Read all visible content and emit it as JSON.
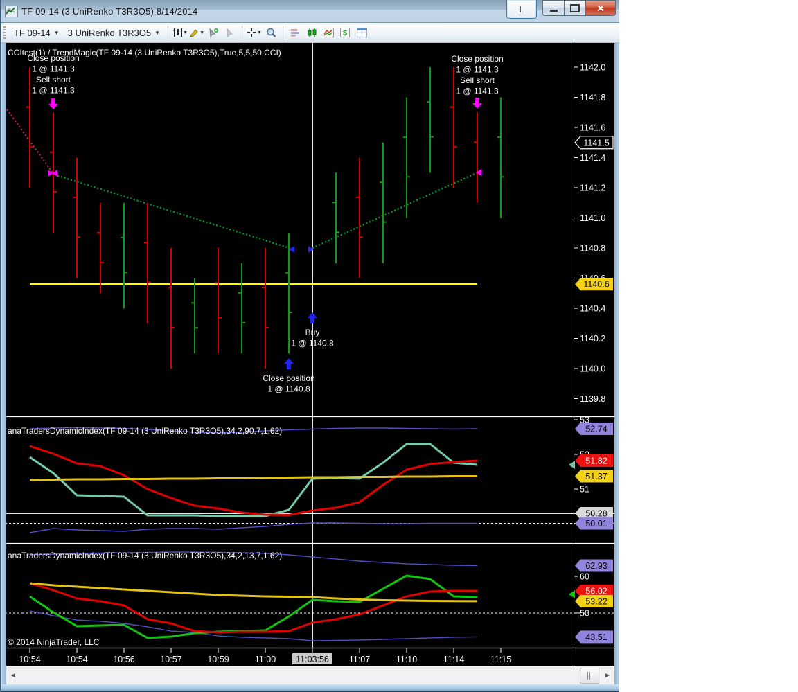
{
  "window": {
    "title": "TF 09-14 (3 UniRenko T3R3O5)  8/14/2014",
    "link_button": "L",
    "close_glyph": "✕"
  },
  "toolbar": {
    "instrument": "TF 09-14",
    "period": "3 UniRenko T3R3O5",
    "dropdown_arrow": "▼",
    "icons": [
      "chart-style",
      "drawing-tools",
      "add-indicator",
      "remove-indicator",
      "crosshair",
      "zoom",
      "market-depth",
      "chart-trader",
      "chart-window",
      "account-dollar",
      "data-grid"
    ]
  },
  "scrollbar": {
    "left_arrow": "◄",
    "right_arrow": "►"
  },
  "chart_data": {
    "type": "trading-chart",
    "layout": {
      "bar0_x": 42,
      "bar_step": 34,
      "axis_x": 827,
      "crosshair_x": 450,
      "lines_end_i": 19
    },
    "colors": {
      "bar_up": "#0f9b0f",
      "bar_down": "#d40000",
      "trend_up": "#00a23c",
      "trend_down": "#cf2050",
      "band": "#544cc0",
      "rsi_red": "#e00000",
      "signal_teal": "#76ccaa",
      "base_yellow": "#e3c21a",
      "signal_green": "#12c312",
      "hline_yellow": "#ffff00",
      "magenta": "#ff00ff",
      "blue": "#2323ee",
      "tag_purple": "#9184dc",
      "tag_red": "#ee1111",
      "tag_yellow": "#f2d117",
      "tag_gray": "#d9d9d9",
      "axis": "#ffffff"
    },
    "price_panel": {
      "label": "CCItest(1)  /  TrendMagic(TF  09-14  (3  UniRenko  T3R3O5),True,5,5,50,CCI)",
      "y_ticks": [
        1142.0,
        1141.8,
        1141.6,
        1141.4,
        1141.2,
        1141.0,
        1140.8,
        1140.6,
        1140.4,
        1140.2,
        1140.0,
        1139.8
      ],
      "bars": [
        {
          "i": 0,
          "h": 1142.0,
          "l": 1141.2,
          "d": "down"
        },
        {
          "i": 1,
          "h": 1141.7,
          "l": 1140.9,
          "d": "down"
        },
        {
          "i": 2,
          "h": 1141.4,
          "l": 1140.6,
          "d": "down"
        },
        {
          "i": 3,
          "h": 1141.1,
          "l": 1140.5,
          "d": "down"
        },
        {
          "i": 4,
          "h": 1141.1,
          "l": 1140.4,
          "d": "up"
        },
        {
          "i": 5,
          "h": 1141.1,
          "l": 1140.3,
          "d": "down"
        },
        {
          "i": 6,
          "h": 1140.8,
          "l": 1140.0,
          "d": "down"
        },
        {
          "i": 7,
          "h": 1140.6,
          "l": 1140.1,
          "d": "up"
        },
        {
          "i": 8,
          "h": 1140.8,
          "l": 1140.1,
          "d": "down"
        },
        {
          "i": 9,
          "h": 1140.7,
          "l": 1140.1,
          "d": "up"
        },
        {
          "i": 10,
          "h": 1140.8,
          "l": 1140.0,
          "d": "down"
        },
        {
          "i": 11,
          "h": 1140.9,
          "l": 1140.1,
          "d": "up"
        },
        {
          "i": 13,
          "h": 1141.3,
          "l": 1140.7,
          "d": "up"
        },
        {
          "i": 14,
          "h": 1141.4,
          "l": 1140.6,
          "d": "down"
        },
        {
          "i": 15,
          "h": 1141.5,
          "l": 1140.7,
          "d": "up"
        },
        {
          "i": 16,
          "h": 1141.8,
          "l": 1141.0,
          "d": "up"
        },
        {
          "i": 17,
          "h": 1142.0,
          "l": 1141.3,
          "d": "up"
        },
        {
          "i": 18,
          "h": 1142.0,
          "l": 1141.2,
          "d": "down"
        },
        {
          "i": 19,
          "h": 1141.7,
          "l": 1141.1,
          "d": "down"
        },
        {
          "i": 20,
          "h": 1141.8,
          "l": 1141.0,
          "d": "up"
        }
      ],
      "yellow_line": {
        "value": 1140.56,
        "x1": 42,
        "x2": 688
      },
      "trend_segments": [
        {
          "color": "trend_down",
          "x1": 9,
          "p1": 1141.72,
          "x2": 75,
          "p2": 1141.3
        },
        {
          "color": "trend_up",
          "x1": 82,
          "p1": 1141.28,
          "x2": 417,
          "p2": 1140.8
        },
        {
          "color": "trend_up",
          "x1": 450,
          "p1": 1140.8,
          "x2": 688,
          "p2": 1141.3
        }
      ],
      "tags": [
        {
          "value": 1141.5,
          "label": "1141.5",
          "style": "outline"
        },
        {
          "value": 1140.56,
          "label": "1140.6",
          "style": "yellow"
        }
      ],
      "markers": [
        {
          "type": "arrow-down",
          "x": 76,
          "y": 142,
          "color": "magenta"
        },
        {
          "type": "arrow-down",
          "x": 688,
          "y": 141,
          "color": "magenta"
        },
        {
          "type": "arrow-up",
          "x": 416,
          "y": 533,
          "color": "blue"
        },
        {
          "type": "arrow-up",
          "x": 450,
          "y": 467,
          "color": "blue"
        },
        {
          "type": "tri-right",
          "x": 68,
          "y": 250,
          "color": "magenta"
        },
        {
          "type": "tri-left",
          "x": 82,
          "y": 250,
          "color": "magenta"
        },
        {
          "type": "tri-left",
          "x": 694,
          "y": 249,
          "color": "magenta"
        },
        {
          "type": "tri-left",
          "x": 424,
          "y": 360,
          "color": "blue"
        },
        {
          "type": "tri-right",
          "x": 444,
          "y": 360,
          "color": "blue"
        }
      ],
      "annotations": [
        {
          "x": 76,
          "y": 88,
          "lines": [
            "Close position",
            "1 @ 1141.3",
            "Sell short",
            "1 @ 1141.3"
          ]
        },
        {
          "x": 688,
          "y": 89,
          "lines": [
            "Close position",
            "1 @ 1141.3",
            "Sell short",
            "1 @ 1141.3"
          ]
        },
        {
          "x": 450,
          "y": 484,
          "lines": [
            "Buy",
            "1 @ 1140.8"
          ]
        },
        {
          "x": 416,
          "y": 550,
          "lines": [
            "Close position",
            "1 @ 1140.8"
          ]
        }
      ]
    },
    "tdi_panels": [
      {
        "label": "anaTradersDynamicIndex(TF  09-14  (3  UniRenko  T3R3O5),34,2,90,7,1.62)",
        "label_y": 626,
        "y_ticks": [
          53,
          52,
          51
        ],
        "series": {
          "upper_band": [
            52.74,
            52.76,
            52.77,
            52.76,
            52.75,
            52.72,
            52.68,
            52.64,
            52.62,
            52.64,
            52.68,
            52.71,
            52.73,
            52.75,
            52.76,
            52.76,
            52.75,
            52.74,
            52.73,
            52.74
          ],
          "rsi": [
            52.24,
            52.02,
            51.74,
            51.66,
            51.4,
            51.0,
            50.74,
            50.52,
            50.44,
            50.32,
            50.26,
            50.25,
            50.38,
            50.46,
            50.62,
            51.12,
            51.56,
            51.72,
            51.78,
            51.82
          ],
          "signal": [
            51.92,
            51.46,
            50.82,
            50.8,
            50.78,
            50.24,
            50.24,
            50.24,
            50.22,
            50.22,
            50.22,
            50.4,
            51.3,
            51.32,
            51.3,
            51.76,
            52.3,
            52.3,
            51.76,
            51.7
          ],
          "base": [
            51.26,
            51.27,
            51.28,
            51.28,
            51.29,
            51.29,
            51.3,
            51.3,
            51.31,
            51.31,
            51.32,
            51.33,
            51.34,
            51.34,
            51.35,
            51.35,
            51.36,
            51.36,
            51.37,
            51.37
          ],
          "lower_band": [
            49.74,
            49.86,
            49.82,
            49.8,
            49.78,
            49.84,
            49.86,
            49.86,
            49.84,
            49.88,
            49.92,
            49.98,
            50.02,
            50.02,
            50.01,
            50.0,
            50.0,
            50.01,
            50.01,
            50.01
          ]
        },
        "signal_color": "signal_teal",
        "hline_solid": 50.3,
        "hline_dashed": 50.01,
        "tags": [
          {
            "value": 52.74,
            "label": "52.74",
            "style": "purple"
          },
          {
            "value": 51.7,
            "label": "",
            "style": "sliver-teal"
          },
          {
            "value": 51.82,
            "label": "51.82",
            "style": "red"
          },
          {
            "value": 51.37,
            "label": "51.37",
            "style": "yellow"
          },
          {
            "value": 50.3,
            "label": "50.28",
            "style": "gray"
          },
          {
            "value": 50.01,
            "label": "50.01",
            "style": "purple"
          }
        ]
      },
      {
        "label": "anaTradersDynamicIndex(TF  09-14  (3  UniRenko  T3R3O5),34,2,13,7,1.62)",
        "label_y": 806,
        "y_ticks": [
          60,
          50
        ],
        "series": {
          "upper_band": [
            65.85,
            66.04,
            66.23,
            66.32,
            66.42,
            66.51,
            66.6,
            66.6,
            66.51,
            66.42,
            66.23,
            65.85,
            65.28,
            64.72,
            64.15,
            63.77,
            63.4,
            63.21,
            63.02,
            62.93
          ],
          "rsi": [
            58.11,
            56.23,
            53.96,
            53.21,
            52.08,
            48.3,
            47.17,
            45.09,
            44.72,
            44.91,
            44.91,
            45.09,
            47.36,
            48.3,
            49.62,
            52.08,
            54.53,
            55.85,
            56.04,
            56.02
          ],
          "signal": [
            54.53,
            50.19,
            46.42,
            46.6,
            46.79,
            43.21,
            43.58,
            44.53,
            44.91,
            45.09,
            45.28,
            49.06,
            53.58,
            53.21,
            53.02,
            56.6,
            60.19,
            59.25,
            54.53,
            54.34
          ],
          "base": [
            58.11,
            57.55,
            57.17,
            56.79,
            56.42,
            56.04,
            55.66,
            55.28,
            54.91,
            54.72,
            54.53,
            54.43,
            54.34,
            53.96,
            53.68,
            53.49,
            53.4,
            53.3,
            53.25,
            53.22
          ],
          "lower_band": [
            50.57,
            49.25,
            48.11,
            47.74,
            47.17,
            46.23,
            45.09,
            44.72,
            43.77,
            43.4,
            43.21,
            43.02,
            42.45,
            42.55,
            42.64,
            42.83,
            43.02,
            43.21,
            43.4,
            43.51
          ]
        },
        "signal_color": "signal_green",
        "hline_solid": null,
        "hline_dashed": 50.0,
        "tags": [
          {
            "value": 62.93,
            "label": "62.93",
            "style": "purple"
          },
          {
            "value": 55.1,
            "label": "",
            "style": "sliver-green"
          },
          {
            "value": 56.02,
            "label": "56.02",
            "style": "red"
          },
          {
            "value": 53.22,
            "label": "53.22",
            "style": "yellow"
          },
          {
            "value": 43.51,
            "label": "43.51",
            "style": "purple"
          }
        ]
      }
    ],
    "time_axis": {
      "labels": [
        {
          "i": 0,
          "text": "10:54"
        },
        {
          "i": 2,
          "text": "10:54"
        },
        {
          "i": 4,
          "text": "10:56"
        },
        {
          "i": 6,
          "text": "10:57"
        },
        {
          "i": 8,
          "text": "10:59"
        },
        {
          "i": 10,
          "text": "11:00"
        },
        {
          "i": 12,
          "text": "11:03:56",
          "highlight": true
        },
        {
          "i": 14,
          "text": "11:07"
        },
        {
          "i": 16,
          "text": "11:10"
        },
        {
          "i": 18,
          "text": "11:14"
        },
        {
          "i": 20,
          "text": "11:15"
        }
      ]
    },
    "copyright": "© 2014 NinjaTrader, LLC"
  }
}
